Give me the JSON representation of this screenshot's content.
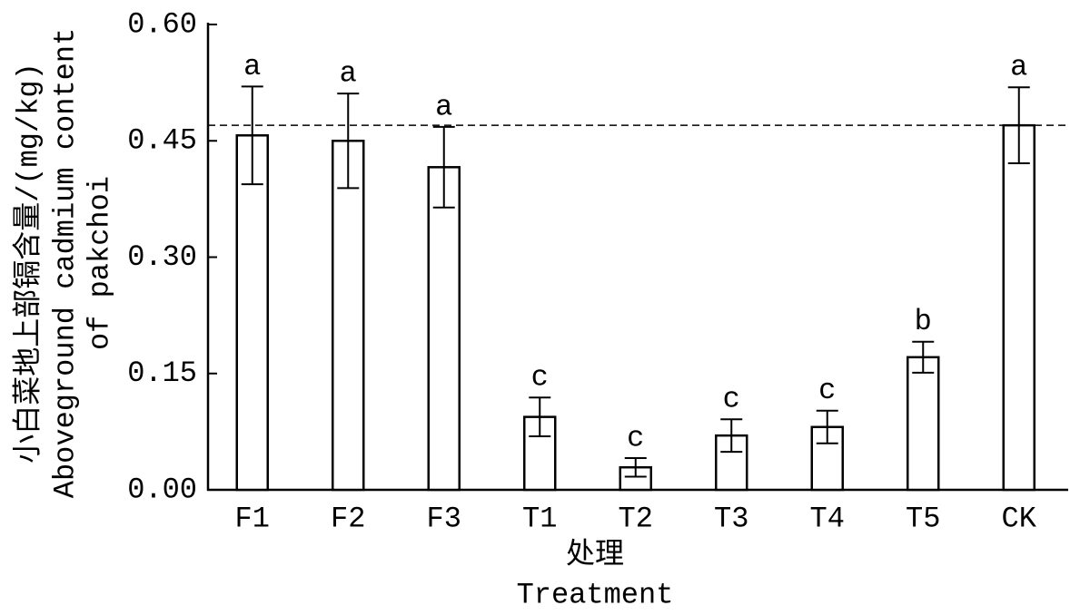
{
  "chart_data": {
    "type": "bar",
    "y_label": [
      "小白菜地上部镉含量/(mg/kg)",
      "Aboveground cadmium content",
      "of pakchoi"
    ],
    "x_label": [
      "处理",
      "Treatment"
    ],
    "categories": [
      "F1",
      "F2",
      "F3",
      "T1",
      "T2",
      "T3",
      "T4",
      "T5",
      "CK"
    ],
    "values": [
      0.457,
      0.45,
      0.416,
      0.094,
      0.029,
      0.07,
      0.081,
      0.171,
      0.47
    ],
    "errors": [
      0.063,
      0.061,
      0.052,
      0.025,
      0.012,
      0.021,
      0.021,
      0.02,
      0.049
    ],
    "annotations": [
      "a",
      "a",
      "a",
      "c",
      "c",
      "c",
      "c",
      "b",
      "a"
    ],
    "reference_line": 0.47,
    "color": "#ffffff",
    "ylim": [
      0,
      0.6
    ],
    "yticks": [
      {
        "value": 0,
        "label": "0.00"
      },
      0.15,
      {
        "value": 0.3,
        "label": "0.30"
      },
      0.45,
      {
        "value": 0.6,
        "label": "0.60"
      }
    ],
    "grid": false
  }
}
